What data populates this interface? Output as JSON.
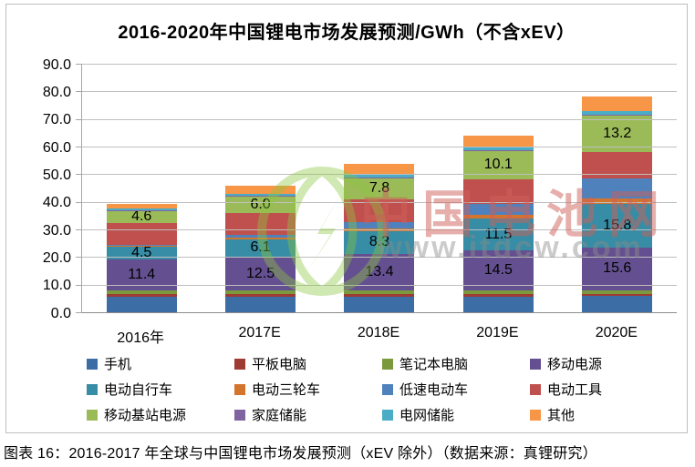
{
  "chart_data": {
    "type": "bar",
    "variant": "stacked",
    "title": "2016-2020年中国锂电市场发展预测/GWh（不含xEV）",
    "categories": [
      "2016年",
      "2017E",
      "2018E",
      "2019E",
      "2020E"
    ],
    "ylim": [
      0,
      90
    ],
    "ytick_labels": [
      "0.0",
      "10.0",
      "20.0",
      "30.0",
      "40.0",
      "50.0",
      "60.0",
      "70.0",
      "80.0",
      "90.0"
    ],
    "grid": true,
    "legend_position": "bottom",
    "series": [
      {
        "name": "手机",
        "color": "#3c6da5",
        "labeled": false,
        "values": [
          5.9,
          5.9,
          6.0,
          6.1,
          6.2
        ]
      },
      {
        "name": "平板电脑",
        "color": "#9e3b33",
        "labeled": false,
        "values": [
          0.9,
          0.9,
          0.8,
          0.8,
          0.8
        ]
      },
      {
        "name": "笔记本电脑",
        "color": "#7a9a3d",
        "labeled": false,
        "values": [
          1.4,
          1.3,
          1.3,
          1.3,
          1.3
        ]
      },
      {
        "name": "移动电源",
        "color": "#645090",
        "labeled": true,
        "values": [
          11.4,
          12.5,
          13.4,
          14.5,
          15.6
        ]
      },
      {
        "name": "电动自行车",
        "color": "#378da5",
        "labeled": true,
        "values": [
          4.5,
          6.1,
          8.3,
          11.5,
          15.8
        ]
      },
      {
        "name": "电动三轮车",
        "color": "#d4752e",
        "labeled": false,
        "values": [
          0.4,
          0.6,
          0.9,
          1.4,
          2.0
        ]
      },
      {
        "name": "低速电动车",
        "color": "#4f81bd",
        "labeled": false,
        "values": [
          0.4,
          1.0,
          2.3,
          4.0,
          7.0
        ]
      },
      {
        "name": "电动工具",
        "color": "#c0504d",
        "labeled": false,
        "values": [
          7.7,
          8.0,
          8.2,
          9.0,
          9.6
        ]
      },
      {
        "name": "移动基站电源",
        "color": "#9bbb59",
        "labeled": true,
        "values": [
          4.6,
          6.0,
          7.8,
          10.1,
          13.2
        ]
      },
      {
        "name": "家庭储能",
        "color": "#8064a2",
        "labeled": false,
        "values": [
          0.1,
          0.2,
          0.3,
          0.4,
          0.5
        ]
      },
      {
        "name": "电网储能",
        "color": "#4bacc6",
        "labeled": false,
        "values": [
          0.6,
          0.8,
          0.9,
          1.0,
          1.2
        ]
      },
      {
        "name": "其他",
        "color": "#f79646",
        "labeled": false,
        "values": [
          1.7,
          2.8,
          4.0,
          4.3,
          5.3
        ]
      }
    ]
  },
  "watermark": {
    "line1": "中国电池网",
    "line2": "www.itdcw.com"
  },
  "caption": "图表 16：2016-2017 年全球与中国锂电市场发展预测（xEV 除外）（数据来源：真锂研究）"
}
